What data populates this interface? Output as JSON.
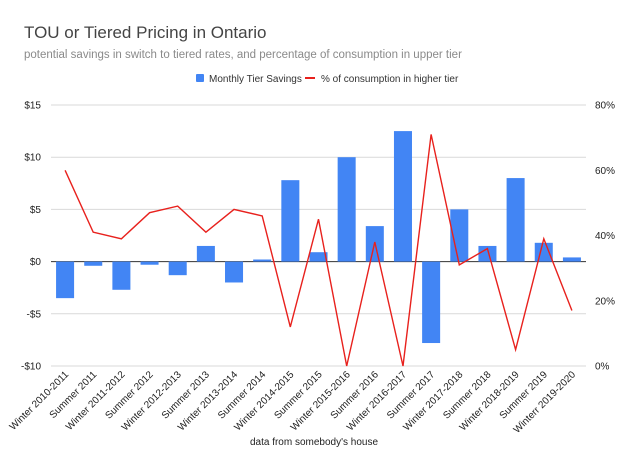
{
  "chart_data": {
    "type": "bar",
    "title": "TOU or Tiered Pricing in Ontario",
    "subtitle": "potential savings in switch to tiered rates, and percentage of consumption in upper tier",
    "xlabel": "data from somebody's house",
    "categories": [
      "Winter 2010-2011",
      "Summer 2011",
      "Winter 2011-2012",
      "Summer 2012",
      "Winter 2012-2013",
      "Summer 2013",
      "Winter 2013-2014",
      "Summer 2014",
      "Winter 2014-2015",
      "Summer 2015",
      "Winter 2015-2016",
      "Summer 2016",
      "Winter 2016-2017",
      "Summer 2017",
      "Winter 2017-2018",
      "Summer 2018",
      "Winter 2018-2019",
      "Summer 2019",
      "Winterr 2019-2020"
    ],
    "series": [
      {
        "name": "Monthly Tier Savings",
        "type": "bar",
        "axis": "left",
        "color": "#4285f4",
        "values": [
          -3.5,
          -0.4,
          -2.7,
          -0.3,
          -1.3,
          1.5,
          -2.0,
          0.2,
          7.8,
          0.9,
          10.0,
          3.4,
          12.5,
          -7.8,
          5.0,
          1.5,
          8.0,
          1.8,
          0.4
        ]
      },
      {
        "name": "% of consumption in higher tier",
        "type": "line",
        "axis": "right",
        "color": "#e8211d",
        "values": [
          60,
          41,
          39,
          47,
          49,
          41,
          48,
          46,
          12,
          45,
          0,
          38,
          0,
          71,
          31,
          36,
          5,
          39,
          17
        ]
      }
    ],
    "y_left": {
      "min": -10,
      "max": 15,
      "ticks": [
        15,
        10,
        5,
        0,
        -5,
        -10
      ],
      "tick_labels": [
        "$15",
        "$10",
        "$5",
        "$0",
        "-$5",
        "-$10"
      ]
    },
    "y_right": {
      "min": 0,
      "max": 80,
      "ticks": [
        80,
        60,
        40,
        20,
        0
      ],
      "tick_labels": [
        "80%",
        "60%",
        "40%",
        "20%",
        "0%"
      ]
    },
    "legend_position": "top-center",
    "grid": true
  }
}
